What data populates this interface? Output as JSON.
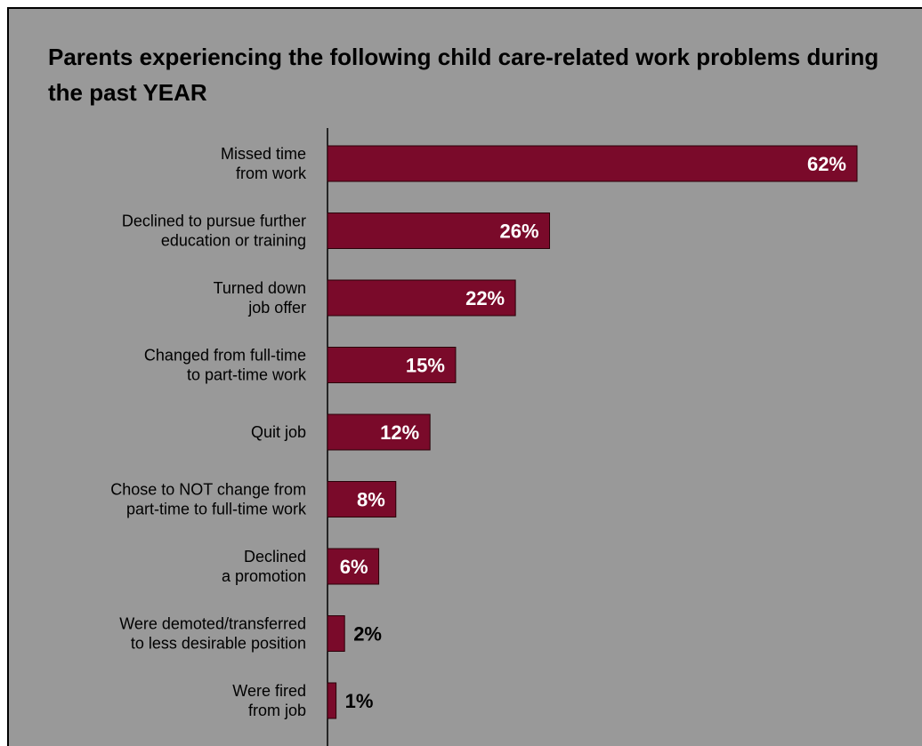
{
  "chart_data": {
    "type": "bar",
    "orientation": "horizontal",
    "title": "Parents experiencing the following child care-related work problems during the past YEAR",
    "categories": [
      [
        "Missed time",
        "from work"
      ],
      [
        "Declined to pursue further",
        "education or training"
      ],
      [
        "Turned down",
        "job offer"
      ],
      [
        "Changed from full-time",
        "to part-time work"
      ],
      [
        "Quit job"
      ],
      [
        "Chose to NOT change from",
        "part-time to full-time work"
      ],
      [
        "Declined",
        "a promotion"
      ],
      [
        "Were demoted/transferred",
        "to less desirable position"
      ],
      [
        "Were fired",
        "from job"
      ]
    ],
    "values": [
      62,
      26,
      22,
      15,
      12,
      8,
      6,
      2,
      1
    ],
    "value_labels": [
      "62%",
      "26%",
      "22%",
      "15%",
      "12%",
      "8%",
      "6%",
      "2%",
      "1%"
    ],
    "value_unit": "%",
    "xlim": [
      0,
      62
    ],
    "grid": false,
    "legend": "none",
    "colors": {
      "bar": "#7A0A2A",
      "background": "#999999",
      "label_inside": "#ffffff",
      "label_outside": "#000000"
    }
  }
}
